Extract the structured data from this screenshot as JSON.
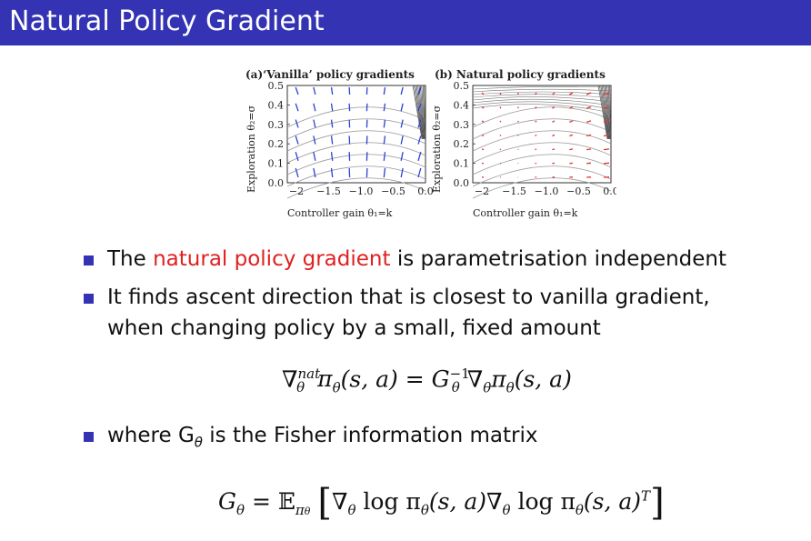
{
  "slide": {
    "title": "Natural Policy Gradient"
  },
  "figure": {
    "panel_a_title": "(a)‘Vanilla’ policy gradients",
    "panel_b_title": "(b) Natural policy gradients",
    "ylabel": "Exploration θ₂=σ",
    "xlabel": "Controller gain θ₁=k",
    "yticks": [
      "0.5",
      "0.4",
      "0.3",
      "0.2",
      "0.1",
      "0.0"
    ],
    "xticks": [
      "−2",
      "−1.5",
      "−1.0",
      "−0.5",
      "0.0"
    ],
    "arrow_color_a": "#2d3fd8",
    "arrow_color_b": "#e43434"
  },
  "bullets": {
    "b1_pre": "The ",
    "b1_red": "natural policy gradient",
    "b1_post": " is parametrisation independent",
    "b2_line1": "It finds ascent direction that is closest to vanilla gradient,",
    "b2_line2": "when changing policy by a small, fixed amount",
    "b3": "where G",
    "b3_sub": "θ",
    "b3_post": " is the Fisher information matrix"
  },
  "eq1": {
    "nabla": "∇",
    "sup": "nat",
    "sub": "θ",
    "lhs": "π",
    "lhs_sub": "θ",
    "lhs_args": "(s, a) = ",
    "G": "G",
    "G_sup": "−1",
    "G_sub": "θ",
    "rhs": "∇",
    "rhs_sub": "θ",
    "rhs_pi": "π",
    "rhs_pi_sub": "θ",
    "rhs_args": "(s, a)"
  },
  "eq2": {
    "G": "G",
    "G_sub": "θ",
    "eqE": " = 𝔼",
    "E_sub": "π",
    "E_subsub": "θ",
    "lb": "[",
    "body1": "∇",
    "body1_sub": "θ",
    "body2": " log π",
    "body2_sub": "θ",
    "body3": "(s, a)∇",
    "body3_sub": "θ",
    "body4": " log π",
    "body4_sub": "θ",
    "body5": "(s, a)",
    "body5_sup": "T",
    "rb": "]"
  }
}
